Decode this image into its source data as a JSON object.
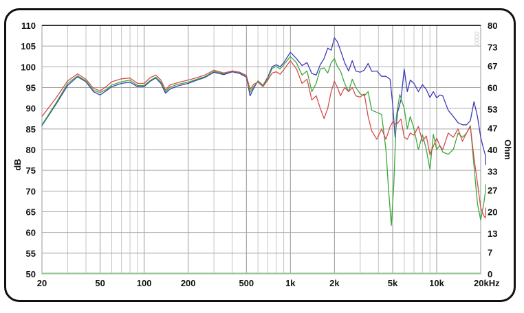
{
  "chart_data": {
    "type": "line",
    "xscale": "log",
    "xlim": [
      20,
      20000
    ],
    "ylim": [
      50,
      110
    ],
    "y2lim": [
      0,
      80
    ],
    "grid": true,
    "ylabel": "dB",
    "y2label": "Ohm",
    "watermark": "0000",
    "x_ticks": [
      {
        "v": 20,
        "label": "20"
      },
      {
        "v": 50,
        "label": "50"
      },
      {
        "v": 100,
        "label": "100"
      },
      {
        "v": 200,
        "label": "200"
      },
      {
        "v": 500,
        "label": "500"
      },
      {
        "v": 1000,
        "label": "1k"
      },
      {
        "v": 2000,
        "label": "2k"
      },
      {
        "v": 5000,
        "label": "5k"
      },
      {
        "v": 10000,
        "label": "10k"
      },
      {
        "v": 20000,
        "label": "20kHz"
      }
    ],
    "y_ticks": [
      {
        "v": 110,
        "label": "110"
      },
      {
        "v": 105,
        "label": "105"
      },
      {
        "v": 100,
        "label": "100"
      },
      {
        "v": 95,
        "label": "95"
      },
      {
        "v": 90,
        "label": "90"
      },
      {
        "v": 85,
        "label": "85"
      },
      {
        "v": 80,
        "label": "80"
      },
      {
        "v": 75,
        "label": "75"
      },
      {
        "v": 70,
        "label": "70"
      },
      {
        "v": 65,
        "label": "65"
      },
      {
        "v": 60,
        "label": "60"
      },
      {
        "v": 55,
        "label": "55"
      },
      {
        "v": 50,
        "label": "50"
      }
    ],
    "y2_ticks": [
      {
        "v": 80,
        "label": "80"
      },
      {
        "v": 73,
        "label": "73"
      },
      {
        "v": 67,
        "label": "67"
      },
      {
        "v": 60,
        "label": "60"
      },
      {
        "v": 53,
        "label": "53"
      },
      {
        "v": 47,
        "label": "47"
      },
      {
        "v": 40,
        "label": "40"
      },
      {
        "v": 33,
        "label": "33"
      },
      {
        "v": 27,
        "label": "27"
      },
      {
        "v": 20,
        "label": "20"
      },
      {
        "v": 13,
        "label": "13"
      },
      {
        "v": 7,
        "label": "7"
      },
      {
        "v": 0,
        "label": "0"
      }
    ],
    "series": [
      {
        "color": "#3b3bb8",
        "points": [
          [
            20,
            85.8
          ],
          [
            25,
            91
          ],
          [
            30,
            95.5
          ],
          [
            35,
            97.6
          ],
          [
            40,
            96.4
          ],
          [
            45,
            94
          ],
          [
            50,
            93.2
          ],
          [
            55,
            94.2
          ],
          [
            60,
            95.2
          ],
          [
            70,
            96
          ],
          [
            80,
            96.3
          ],
          [
            90,
            95.2
          ],
          [
            100,
            95.2
          ],
          [
            110,
            96.5
          ],
          [
            120,
            97.3
          ],
          [
            130,
            96
          ],
          [
            140,
            93.6
          ],
          [
            150,
            94.6
          ],
          [
            170,
            95.4
          ],
          [
            200,
            96
          ],
          [
            230,
            96.8
          ],
          [
            260,
            97.4
          ],
          [
            300,
            98.7
          ],
          [
            350,
            98.1
          ],
          [
            400,
            98.8
          ],
          [
            450,
            98.4
          ],
          [
            500,
            97.5
          ],
          [
            530,
            93
          ],
          [
            560,
            94.8
          ],
          [
            600,
            96.6
          ],
          [
            650,
            95.5
          ],
          [
            700,
            97.5
          ],
          [
            750,
            100
          ],
          [
            800,
            100.5
          ],
          [
            850,
            100
          ],
          [
            900,
            101
          ],
          [
            1000,
            103.5
          ],
          [
            1100,
            102
          ],
          [
            1200,
            100.3
          ],
          [
            1300,
            101
          ],
          [
            1400,
            98.4
          ],
          [
            1500,
            98
          ],
          [
            1600,
            100.5
          ],
          [
            1700,
            102
          ],
          [
            1800,
            104.5
          ],
          [
            1900,
            104
          ],
          [
            2000,
            107
          ],
          [
            2100,
            106
          ],
          [
            2200,
            104
          ],
          [
            2350,
            101
          ],
          [
            2500,
            99
          ],
          [
            2650,
            101.5
          ],
          [
            2800,
            99
          ],
          [
            3000,
            98.7
          ],
          [
            3200,
            99.2
          ],
          [
            3400,
            100.8
          ],
          [
            3600,
            98.9
          ],
          [
            3900,
            99
          ],
          [
            4200,
            97.7
          ],
          [
            4500,
            97.7
          ],
          [
            4800,
            97
          ],
          [
            5000,
            91
          ],
          [
            5200,
            83
          ],
          [
            5400,
            89
          ],
          [
            5700,
            92
          ],
          [
            6000,
            99.5
          ],
          [
            6300,
            94
          ],
          [
            6600,
            96.8
          ],
          [
            7000,
            96
          ],
          [
            7500,
            94
          ],
          [
            8000,
            95.7
          ],
          [
            8500,
            94.5
          ],
          [
            9000,
            92.6
          ],
          [
            9500,
            94
          ],
          [
            10000,
            92.5
          ],
          [
            10500,
            93.2
          ],
          [
            11000,
            93
          ],
          [
            12000,
            89.5
          ],
          [
            13000,
            88
          ],
          [
            14000,
            86.5
          ],
          [
            15000,
            86
          ],
          [
            16000,
            86
          ],
          [
            17000,
            87
          ],
          [
            18000,
            91.6
          ],
          [
            19000,
            88
          ],
          [
            20000,
            83
          ],
          [
            21000,
            80
          ],
          [
            22000,
            78.6
          ],
          [
            23000,
            76.3
          ]
        ]
      },
      {
        "color": "#3aa83a",
        "points": [
          [
            20,
            86
          ],
          [
            25,
            91.3
          ],
          [
            30,
            96
          ],
          [
            35,
            97.8
          ],
          [
            40,
            96.6
          ],
          [
            45,
            94.3
          ],
          [
            50,
            93.8
          ],
          [
            55,
            94.5
          ],
          [
            60,
            95.6
          ],
          [
            70,
            96.4
          ],
          [
            80,
            96.8
          ],
          [
            90,
            95.5
          ],
          [
            100,
            95.5
          ],
          [
            110,
            96.7
          ],
          [
            120,
            97.5
          ],
          [
            130,
            96.3
          ],
          [
            140,
            94
          ],
          [
            150,
            95.1
          ],
          [
            170,
            95.8
          ],
          [
            200,
            96.3
          ],
          [
            230,
            97
          ],
          [
            260,
            97.6
          ],
          [
            300,
            98.9
          ],
          [
            350,
            98.3
          ],
          [
            400,
            99
          ],
          [
            450,
            98.6
          ],
          [
            500,
            97.8
          ],
          [
            530,
            93.8
          ],
          [
            560,
            95.2
          ],
          [
            600,
            96.5
          ],
          [
            650,
            95.4
          ],
          [
            700,
            97.2
          ],
          [
            750,
            99.6
          ],
          [
            800,
            100.1
          ],
          [
            850,
            99.5
          ],
          [
            900,
            100.5
          ],
          [
            1000,
            102.5
          ],
          [
            1100,
            101
          ],
          [
            1200,
            98
          ],
          [
            1300,
            99
          ],
          [
            1400,
            94
          ],
          [
            1500,
            96
          ],
          [
            1600,
            99.5
          ],
          [
            1700,
            99.7
          ],
          [
            1800,
            98.5
          ],
          [
            1900,
            101
          ],
          [
            2000,
            102
          ],
          [
            2100,
            100
          ],
          [
            2200,
            99
          ],
          [
            2350,
            96
          ],
          [
            2500,
            94
          ],
          [
            2650,
            97
          ],
          [
            2800,
            95
          ],
          [
            3000,
            93.5
          ],
          [
            3200,
            93
          ],
          [
            3400,
            94
          ],
          [
            3600,
            89.5
          ],
          [
            3900,
            89
          ],
          [
            4200,
            88.5
          ],
          [
            4500,
            80
          ],
          [
            4700,
            70
          ],
          [
            4900,
            61.7
          ],
          [
            5100,
            72
          ],
          [
            5300,
            88
          ],
          [
            5600,
            93.3
          ],
          [
            6000,
            90
          ],
          [
            6300,
            85
          ],
          [
            6600,
            88
          ],
          [
            7000,
            85
          ],
          [
            7500,
            80
          ],
          [
            8000,
            83.6
          ],
          [
            8500,
            80
          ],
          [
            9000,
            75.2
          ],
          [
            9500,
            83.7
          ],
          [
            10000,
            80
          ],
          [
            10500,
            81
          ],
          [
            11000,
            79.4
          ],
          [
            12000,
            78.9
          ],
          [
            13000,
            80
          ],
          [
            14000,
            84
          ],
          [
            15000,
            83
          ],
          [
            16000,
            84
          ],
          [
            17000,
            85.8
          ],
          [
            18000,
            76
          ],
          [
            19000,
            67
          ],
          [
            20000,
            63
          ],
          [
            21000,
            67
          ],
          [
            22000,
            70
          ],
          [
            23000,
            71.6
          ]
        ]
      },
      {
        "color": "#d94a4a",
        "points": [
          [
            20,
            88
          ],
          [
            25,
            92.5
          ],
          [
            30,
            96.6
          ],
          [
            35,
            98.3
          ],
          [
            40,
            97
          ],
          [
            45,
            94.8
          ],
          [
            50,
            94.2
          ],
          [
            55,
            95.2
          ],
          [
            60,
            96.4
          ],
          [
            70,
            97.1
          ],
          [
            80,
            97.3
          ],
          [
            90,
            96
          ],
          [
            100,
            96
          ],
          [
            110,
            97.4
          ],
          [
            120,
            98
          ],
          [
            130,
            96.8
          ],
          [
            140,
            94.4
          ],
          [
            150,
            95.6
          ],
          [
            170,
            96.2
          ],
          [
            200,
            96.8
          ],
          [
            230,
            97.4
          ],
          [
            260,
            98
          ],
          [
            300,
            99.2
          ],
          [
            350,
            98.5
          ],
          [
            400,
            99
          ],
          [
            450,
            98.7
          ],
          [
            500,
            97.9
          ],
          [
            530,
            94.5
          ],
          [
            560,
            95.8
          ],
          [
            600,
            96.3
          ],
          [
            650,
            95.2
          ],
          [
            700,
            96.8
          ],
          [
            750,
            98.5
          ],
          [
            800,
            98.8
          ],
          [
            850,
            98.2
          ],
          [
            900,
            99.3
          ],
          [
            1000,
            101.5
          ],
          [
            1100,
            99.5
          ],
          [
            1200,
            96
          ],
          [
            1300,
            97
          ],
          [
            1400,
            92
          ],
          [
            1500,
            93
          ],
          [
            1600,
            90
          ],
          [
            1700,
            87.5
          ],
          [
            1800,
            90
          ],
          [
            1900,
            94
          ],
          [
            2000,
            96.5
          ],
          [
            2100,
            95
          ],
          [
            2200,
            93
          ],
          [
            2350,
            95
          ],
          [
            2500,
            94
          ],
          [
            2650,
            95
          ],
          [
            2800,
            93
          ],
          [
            3000,
            92.7
          ],
          [
            3200,
            93.5
          ],
          [
            3400,
            88
          ],
          [
            3600,
            84.5
          ],
          [
            3900,
            82.5
          ],
          [
            4200,
            85
          ],
          [
            4500,
            82.5
          ],
          [
            4800,
            85.5
          ],
          [
            5000,
            86.7
          ],
          [
            5300,
            86
          ],
          [
            5700,
            87.4
          ],
          [
            6000,
            83
          ],
          [
            6300,
            82.5
          ],
          [
            6600,
            84
          ],
          [
            7000,
            83.5
          ],
          [
            7500,
            85.6
          ],
          [
            8000,
            82
          ],
          [
            8500,
            83.3
          ],
          [
            9000,
            78.8
          ],
          [
            9500,
            80.8
          ],
          [
            10000,
            82.8
          ],
          [
            10500,
            81
          ],
          [
            11000,
            80
          ],
          [
            12000,
            84
          ],
          [
            13000,
            83
          ],
          [
            14000,
            85
          ],
          [
            15000,
            82
          ],
          [
            16000,
            84
          ],
          [
            17000,
            85.6
          ],
          [
            18000,
            78
          ],
          [
            19000,
            72
          ],
          [
            20000,
            66
          ],
          [
            21000,
            64
          ],
          [
            22000,
            63.5
          ],
          [
            23000,
            66
          ]
        ]
      }
    ]
  }
}
